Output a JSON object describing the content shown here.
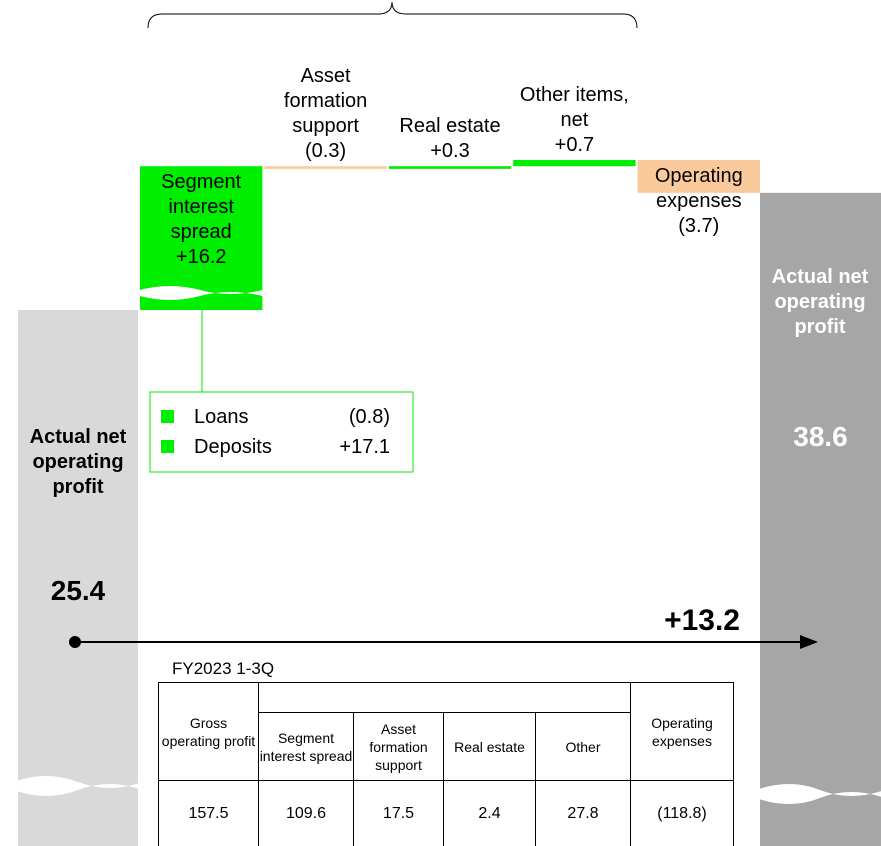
{
  "chart_data": {
    "type": "waterfall",
    "start": {
      "label": "Actual net operating profit",
      "value": 25.4
    },
    "steps": {
      "categories": [
        "Segment interest spread",
        "Asset formation support",
        "Real estate",
        "Other items, net",
        "Operating expenses"
      ],
      "values": [
        16.2,
        -0.3,
        0.3,
        0.7,
        -3.7
      ],
      "value_labels": [
        "+16.2",
        "(0.3)",
        "+0.3",
        "+0.7",
        "(3.7)"
      ]
    },
    "end": {
      "label": "Actual net operating profit",
      "value": 38.6
    },
    "change": {
      "value": 13.2,
      "label": "+13.2"
    },
    "breakdown": {
      "categories": [
        "Loans",
        "Deposits"
      ],
      "values": [
        -0.8,
        17.1
      ],
      "value_labels": [
        "(0.8)",
        "+17.1"
      ]
    },
    "colors": {
      "increase": "#00ee00",
      "decrease": "#fbca9c",
      "start": "#d9d9d9",
      "end": "#a6a6a6"
    }
  },
  "table": {
    "title": "FY2023 1-3Q",
    "group_header": "Gross operating profit",
    "columns": [
      "Segment interest spread",
      "Asset formation support",
      "Real estate",
      "Other"
    ],
    "last_header": "Operating expenses",
    "rows": [
      [
        "157.5",
        "109.6",
        "17.5",
        "2.4",
        "27.8",
        "(118.8)"
      ]
    ]
  }
}
